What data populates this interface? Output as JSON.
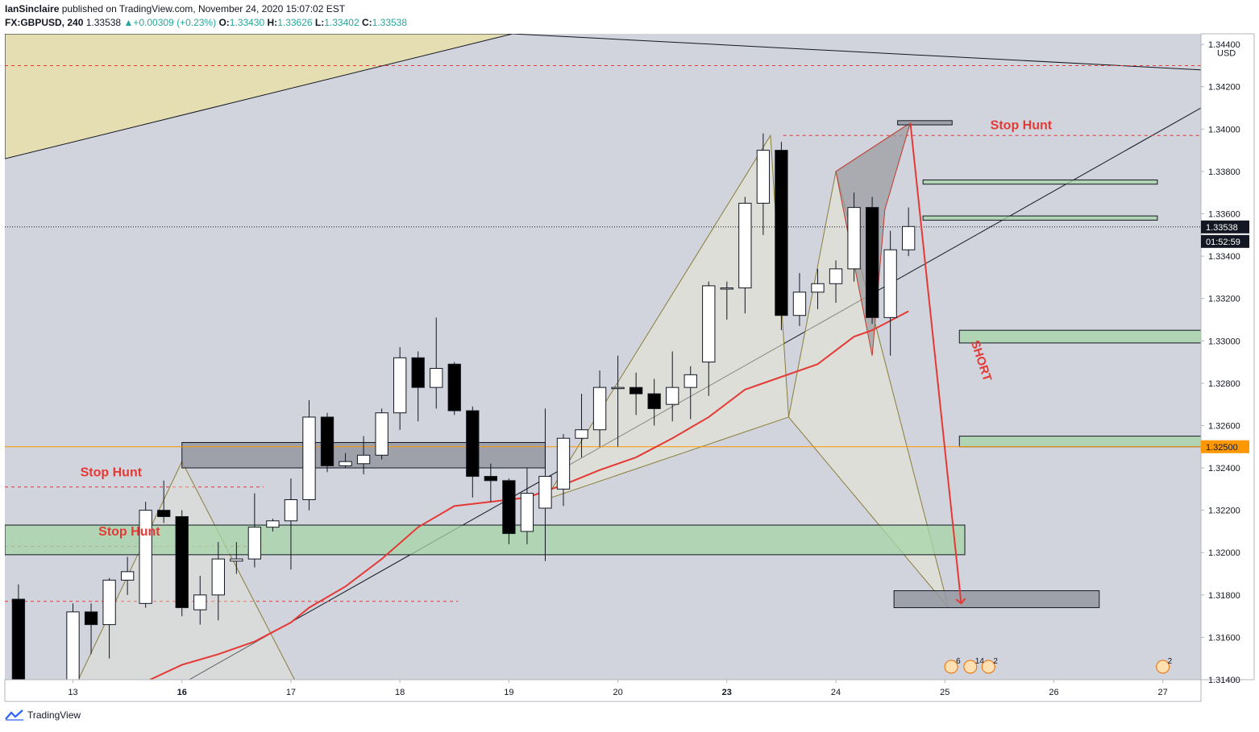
{
  "header": {
    "author": "IanSinclaire",
    "published_text": "published on TradingView.com, November 24, 2020 15:07:02 EST",
    "symbol": "FX:GBPUSD",
    "interval": "240",
    "last": "1.33538",
    "change_arrow": "▲",
    "change": "+0.00309 (+0.23%)",
    "o_label": "O:",
    "o": "1.33430",
    "h_label": "H:",
    "h": "1.33626",
    "l_label": "L:",
    "l": "1.33402",
    "c_label": "C:",
    "c": "1.33538"
  },
  "footer": {
    "brand": "TradingView"
  },
  "chart_data": {
    "type": "candlestick",
    "currency_label": "USD",
    "ylim": [
      1.314,
      1.3445
    ],
    "y_ticks": [
      "1.34400",
      "1.34200",
      "1.34000",
      "1.33800",
      "1.33600",
      "1.33400",
      "1.33200",
      "1.33000",
      "1.32800",
      "1.32600",
      "1.32400",
      "1.32200",
      "1.32000",
      "1.31800",
      "1.31600",
      "1.31400"
    ],
    "x_ticks": [
      {
        "label": "13",
        "bar": 3
      },
      {
        "label": "16",
        "bar": 9
      },
      {
        "label": "17",
        "bar": 15
      },
      {
        "label": "18",
        "bar": 21
      },
      {
        "label": "19",
        "bar": 27
      },
      {
        "label": "20",
        "bar": 33
      },
      {
        "label": "23",
        "bar": 39
      },
      {
        "label": "24",
        "bar": 45
      },
      {
        "label": "25",
        "bar": 51
      },
      {
        "label": "26",
        "bar": 57
      },
      {
        "label": "27",
        "bar": 63
      }
    ],
    "x_tick_bold": [
      "16",
      "23"
    ],
    "bar_range": [
      -0.75,
      65.1
    ],
    "price_tag": {
      "value": "1.33538",
      "countdown": "01:52:59"
    },
    "level_tag": {
      "value": "1.32500"
    },
    "candles": [
      {
        "i": 0,
        "o": 1.3178,
        "h": 1.3185,
        "l": 1.314,
        "c": 1.314
      },
      {
        "i": 3,
        "o": 1.314,
        "h": 1.3176,
        "l": 1.3138,
        "c": 1.3172
      },
      {
        "i": 4,
        "o": 1.3172,
        "h": 1.3176,
        "l": 1.3152,
        "c": 1.3166
      },
      {
        "i": 5,
        "o": 1.3166,
        "h": 1.3188,
        "l": 1.315,
        "c": 1.3187
      },
      {
        "i": 6,
        "o": 1.3187,
        "h": 1.3198,
        "l": 1.318,
        "c": 1.3191
      },
      {
        "i": 7,
        "o": 1.3176,
        "h": 1.3224,
        "l": 1.3174,
        "c": 1.322
      },
      {
        "i": 8,
        "o": 1.322,
        "h": 1.3234,
        "l": 1.3214,
        "c": 1.3217
      },
      {
        "i": 9,
        "o": 1.3217,
        "h": 1.322,
        "l": 1.317,
        "c": 1.3174
      },
      {
        "i": 10,
        "o": 1.3173,
        "h": 1.3189,
        "l": 1.3166,
        "c": 1.318
      },
      {
        "i": 11,
        "o": 1.318,
        "h": 1.3205,
        "l": 1.3168,
        "c": 1.3197
      },
      {
        "i": 12,
        "o": 1.3196,
        "h": 1.3205,
        "l": 1.319,
        "c": 1.3197
      },
      {
        "i": 13,
        "o": 1.3197,
        "h": 1.3228,
        "l": 1.3193,
        "c": 1.3212
      },
      {
        "i": 14,
        "o": 1.3212,
        "h": 1.3216,
        "l": 1.321,
        "c": 1.3215
      },
      {
        "i": 15,
        "o": 1.3215,
        "h": 1.3235,
        "l": 1.3192,
        "c": 1.3225
      },
      {
        "i": 16,
        "o": 1.3225,
        "h": 1.3272,
        "l": 1.322,
        "c": 1.3264
      },
      {
        "i": 17,
        "o": 1.3264,
        "h": 1.3266,
        "l": 1.3238,
        "c": 1.3241
      },
      {
        "i": 18,
        "o": 1.3241,
        "h": 1.3247,
        "l": 1.324,
        "c": 1.3243
      },
      {
        "i": 19,
        "o": 1.3242,
        "h": 1.3255,
        "l": 1.3237,
        "c": 1.3246
      },
      {
        "i": 20,
        "o": 1.3246,
        "h": 1.3268,
        "l": 1.3244,
        "c": 1.3266
      },
      {
        "i": 21,
        "o": 1.3266,
        "h": 1.3297,
        "l": 1.3258,
        "c": 1.3292
      },
      {
        "i": 22,
        "o": 1.3292,
        "h": 1.3295,
        "l": 1.3262,
        "c": 1.3278
      },
      {
        "i": 23,
        "o": 1.3278,
        "h": 1.3311,
        "l": 1.3268,
        "c": 1.3287
      },
      {
        "i": 24,
        "o": 1.3289,
        "h": 1.329,
        "l": 1.3265,
        "c": 1.3267
      },
      {
        "i": 25,
        "o": 1.3267,
        "h": 1.3269,
        "l": 1.3226,
        "c": 1.3236
      },
      {
        "i": 26,
        "o": 1.3236,
        "h": 1.3242,
        "l": 1.3224,
        "c": 1.3234
      },
      {
        "i": 27,
        "o": 1.3234,
        "h": 1.3235,
        "l": 1.3204,
        "c": 1.3209
      },
      {
        "i": 28,
        "o": 1.321,
        "h": 1.324,
        "l": 1.3204,
        "c": 1.3228
      },
      {
        "i": 29,
        "o": 1.3221,
        "h": 1.3268,
        "l": 1.3196,
        "c": 1.3236
      },
      {
        "i": 30,
        "o": 1.323,
        "h": 1.3256,
        "l": 1.3222,
        "c": 1.3254
      },
      {
        "i": 31,
        "o": 1.3254,
        "h": 1.3275,
        "l": 1.3245,
        "c": 1.3258
      },
      {
        "i": 32,
        "o": 1.3258,
        "h": 1.3286,
        "l": 1.325,
        "c": 1.3278
      },
      {
        "i": 33,
        "o": 1.3278,
        "h": 1.3293,
        "l": 1.325,
        "c": 1.3278
      },
      {
        "i": 34,
        "o": 1.3278,
        "h": 1.3285,
        "l": 1.3265,
        "c": 1.3275
      },
      {
        "i": 35,
        "o": 1.3275,
        "h": 1.3282,
        "l": 1.326,
        "c": 1.3268
      },
      {
        "i": 36,
        "o": 1.327,
        "h": 1.3295,
        "l": 1.3262,
        "c": 1.3278
      },
      {
        "i": 37,
        "o": 1.3278,
        "h": 1.3288,
        "l": 1.3263,
        "c": 1.3284
      },
      {
        "i": 38,
        "o": 1.329,
        "h": 1.3328,
        "l": 1.3274,
        "c": 1.3326
      },
      {
        "i": 39,
        "o": 1.3325,
        "h": 1.3328,
        "l": 1.331,
        "c": 1.3325
      },
      {
        "i": 40,
        "o": 1.3325,
        "h": 1.3368,
        "l": 1.3313,
        "c": 1.3365
      },
      {
        "i": 41,
        "o": 1.3365,
        "h": 1.3398,
        "l": 1.335,
        "c": 1.339
      },
      {
        "i": 42,
        "o": 1.339,
        "h": 1.3394,
        "l": 1.3305,
        "c": 1.3312
      },
      {
        "i": 43,
        "o": 1.3312,
        "h": 1.3332,
        "l": 1.3307,
        "c": 1.3323
      },
      {
        "i": 44,
        "o": 1.3323,
        "h": 1.3334,
        "l": 1.3315,
        "c": 1.3327
      },
      {
        "i": 45,
        "o": 1.3327,
        "h": 1.3338,
        "l": 1.3318,
        "c": 1.3334
      },
      {
        "i": 46,
        "o": 1.3334,
        "h": 1.337,
        "l": 1.3328,
        "c": 1.3363
      },
      {
        "i": 47,
        "o": 1.3363,
        "h": 1.3368,
        "l": 1.3308,
        "c": 1.3311
      },
      {
        "i": 48,
        "o": 1.3311,
        "h": 1.3352,
        "l": 1.3293,
        "c": 1.3343
      },
      {
        "i": 49,
        "o": 1.3343,
        "h": 1.3363,
        "l": 1.334,
        "c": 1.3354
      }
    ],
    "ema": [
      [
        6,
        1.3135
      ],
      [
        9,
        1.3147
      ],
      [
        11,
        1.3152
      ],
      [
        13,
        1.3158
      ],
      [
        15,
        1.3167
      ],
      [
        16,
        1.3174
      ],
      [
        18,
        1.3184
      ],
      [
        20,
        1.3197
      ],
      [
        22,
        1.3212
      ],
      [
        24,
        1.3222
      ],
      [
        26,
        1.3224
      ],
      [
        28,
        1.3226
      ],
      [
        30,
        1.3232
      ],
      [
        32,
        1.3239
      ],
      [
        34,
        1.3245
      ],
      [
        36,
        1.3254
      ],
      [
        38,
        1.3264
      ],
      [
        40,
        1.3277
      ],
      [
        41,
        1.328
      ],
      [
        44,
        1.3289
      ],
      [
        46,
        1.3302
      ],
      [
        47,
        1.3305
      ],
      [
        49,
        1.3314
      ]
    ],
    "zones": [
      {
        "x0": -0.75,
        "x1": 52.1,
        "y0": 1.3199,
        "y1": 1.3213,
        "kind": "demand"
      },
      {
        "x0": 9.0,
        "x1": 29.0,
        "y0": 1.324,
        "y1": 1.3252,
        "kind": "supply"
      },
      {
        "x0": 51.8,
        "x1": 65.1,
        "y0": 1.3299,
        "y1": 1.3305,
        "kind": "demand"
      },
      {
        "x0": 51.8,
        "x1": 65.1,
        "y0": 1.325,
        "y1": 1.3255,
        "kind": "demand"
      },
      {
        "x0": 49.8,
        "x1": 62.7,
        "y0": 1.3357,
        "y1": 1.3359,
        "kind": "demand"
      },
      {
        "x0": 49.8,
        "x1": 62.7,
        "y0": 1.3374,
        "y1": 1.3376,
        "kind": "demand"
      },
      {
        "x0": 48.2,
        "x1": 59.5,
        "y0": 1.3174,
        "y1": 1.3182,
        "kind": "supply"
      },
      {
        "x0": 48.4,
        "x1": 51.4,
        "y0": 1.3402,
        "y1": 1.3404,
        "kind": "supply"
      }
    ],
    "stop_hunt_labels": [
      {
        "text": "Stop Hunt",
        "bar": 5.1,
        "price": 1.3236
      },
      {
        "text": "Stop Hunt",
        "bar": 6.1,
        "price": 1.3208
      },
      {
        "text": "Stop Hunt",
        "bar": 55.2,
        "price": 1.34
      }
    ],
    "short_label": {
      "text": "SHORT",
      "bar": 52.8,
      "price": 1.329
    },
    "level_lines": [
      {
        "price": 1.325,
        "color": "#ff9800",
        "style": "solid"
      },
      {
        "price": 1.33538,
        "color": "#131722",
        "style": "dotted"
      }
    ]
  }
}
